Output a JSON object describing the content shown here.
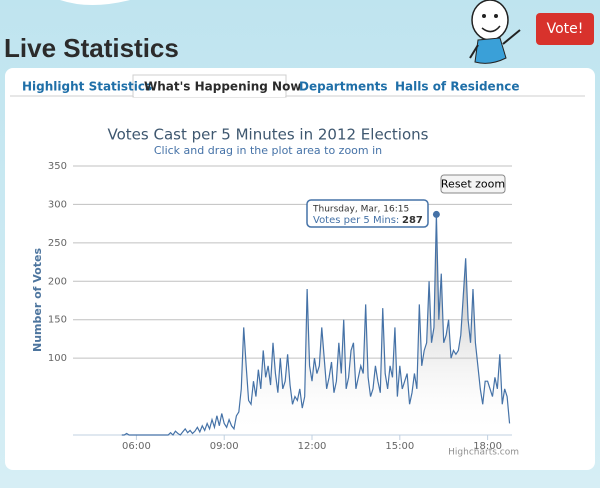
{
  "header": {
    "title": "Live Statistics",
    "button": "Vote!"
  },
  "tabs": [
    "Highlight Statistics",
    "What's Happening Now",
    "Departments",
    "Halls of Residence"
  ],
  "chart_data": {
    "type": "area",
    "title": "Votes Cast per 5 Minutes in 2012 Elections",
    "subtitle": "Click and drag in the plot area to zoom in",
    "y_label": "Number of Votes",
    "reset_button": "Reset zoom",
    "credits": "Highcharts.com",
    "tooltip": {
      "heading": "Thursday, Mar, 16:15",
      "label": "Votes per 5 Mins:"
    },
    "x": [
      "05:30",
      "05:35",
      "05:40",
      "05:45",
      "05:50",
      "05:55",
      "06:00",
      "06:05",
      "06:10",
      "06:15",
      "06:20",
      "06:25",
      "06:30",
      "06:35",
      "06:40",
      "06:45",
      "06:50",
      "06:55",
      "07:00",
      "07:05",
      "07:10",
      "07:15",
      "07:20",
      "07:25",
      "07:30",
      "07:35",
      "07:40",
      "07:45",
      "07:50",
      "07:55",
      "08:00",
      "08:05",
      "08:10",
      "08:15",
      "08:20",
      "08:25",
      "08:30",
      "08:35",
      "08:40",
      "08:45",
      "08:50",
      "08:55",
      "09:00",
      "09:05",
      "09:10",
      "09:15",
      "09:20",
      "09:25",
      "09:30",
      "09:35",
      "09:40",
      "09:45",
      "09:50",
      "09:55",
      "10:00",
      "10:05",
      "10:10",
      "10:15",
      "10:20",
      "10:25",
      "10:30",
      "10:35",
      "10:40",
      "10:45",
      "10:50",
      "10:55",
      "11:00",
      "11:05",
      "11:10",
      "11:15",
      "11:20",
      "11:25",
      "11:30",
      "11:35",
      "11:40",
      "11:45",
      "11:50",
      "11:55",
      "12:00",
      "12:05",
      "12:10",
      "12:15",
      "12:20",
      "12:25",
      "12:30",
      "12:35",
      "12:40",
      "12:45",
      "12:50",
      "12:55",
      "13:00",
      "13:05",
      "13:10",
      "13:15",
      "13:20",
      "13:25",
      "13:30",
      "13:35",
      "13:40",
      "13:45",
      "13:50",
      "13:55",
      "14:00",
      "14:05",
      "14:10",
      "14:15",
      "14:20",
      "14:25",
      "14:30",
      "14:35",
      "14:40",
      "14:45",
      "14:50",
      "14:55",
      "15:00",
      "15:05",
      "15:10",
      "15:15",
      "15:20",
      "15:25",
      "15:30",
      "15:35",
      "15:40",
      "15:45",
      "15:50",
      "15:55",
      "16:00",
      "16:05",
      "16:10",
      "16:15",
      "16:20",
      "16:25",
      "16:30",
      "16:35",
      "16:40",
      "16:45",
      "16:50",
      "16:55",
      "17:00",
      "17:05",
      "17:10",
      "17:15",
      "17:20",
      "17:25",
      "17:30",
      "17:35",
      "17:40",
      "17:45",
      "17:50",
      "17:55",
      "18:00",
      "18:05",
      "18:10",
      "18:15",
      "18:20",
      "18:25",
      "18:30",
      "18:35",
      "18:40",
      "18:45"
    ],
    "series": [
      {
        "name": "Votes per 5 Mins",
        "color": "#4572a7",
        "values": [
          0,
          0,
          2,
          0,
          0,
          0,
          0,
          0,
          0,
          0,
          0,
          0,
          0,
          0,
          0,
          0,
          0,
          0,
          0,
          0,
          3,
          0,
          5,
          2,
          0,
          4,
          8,
          3,
          6,
          2,
          5,
          10,
          4,
          12,
          6,
          15,
          8,
          20,
          10,
          25,
          12,
          28,
          15,
          10,
          20,
          12,
          8,
          25,
          30,
          60,
          140,
          90,
          45,
          40,
          70,
          50,
          85,
          60,
          110,
          75,
          90,
          65,
          120,
          80,
          55,
          100,
          60,
          70,
          105,
          65,
          40,
          50,
          45,
          60,
          35,
          50,
          190,
          90,
          70,
          100,
          80,
          90,
          140,
          100,
          60,
          75,
          95,
          55,
          70,
          120,
          80,
          150,
          60,
          75,
          110,
          120,
          60,
          75,
          90,
          80,
          170,
          75,
          50,
          60,
          90,
          70,
          55,
          165,
          80,
          60,
          90,
          75,
          140,
          50,
          90,
          60,
          70,
          80,
          40,
          55,
          80,
          60,
          170,
          90,
          110,
          120,
          200,
          120,
          140,
          287,
          150,
          210,
          120,
          130,
          150,
          100,
          110,
          105,
          110,
          130,
          180,
          230,
          150,
          120,
          190,
          120,
          90,
          60,
          40,
          70,
          70,
          60,
          50,
          75,
          60,
          105,
          40,
          60,
          50,
          15
        ]
      }
    ],
    "xlim": [
      "03:50",
      "18:50"
    ],
    "xticks": [
      "06:00",
      "09:00",
      "12:00",
      "15:00",
      "18:00"
    ],
    "ylim": [
      0,
      350
    ],
    "yticks": [
      100,
      150,
      200,
      250,
      300,
      350
    ],
    "grid": true
  }
}
